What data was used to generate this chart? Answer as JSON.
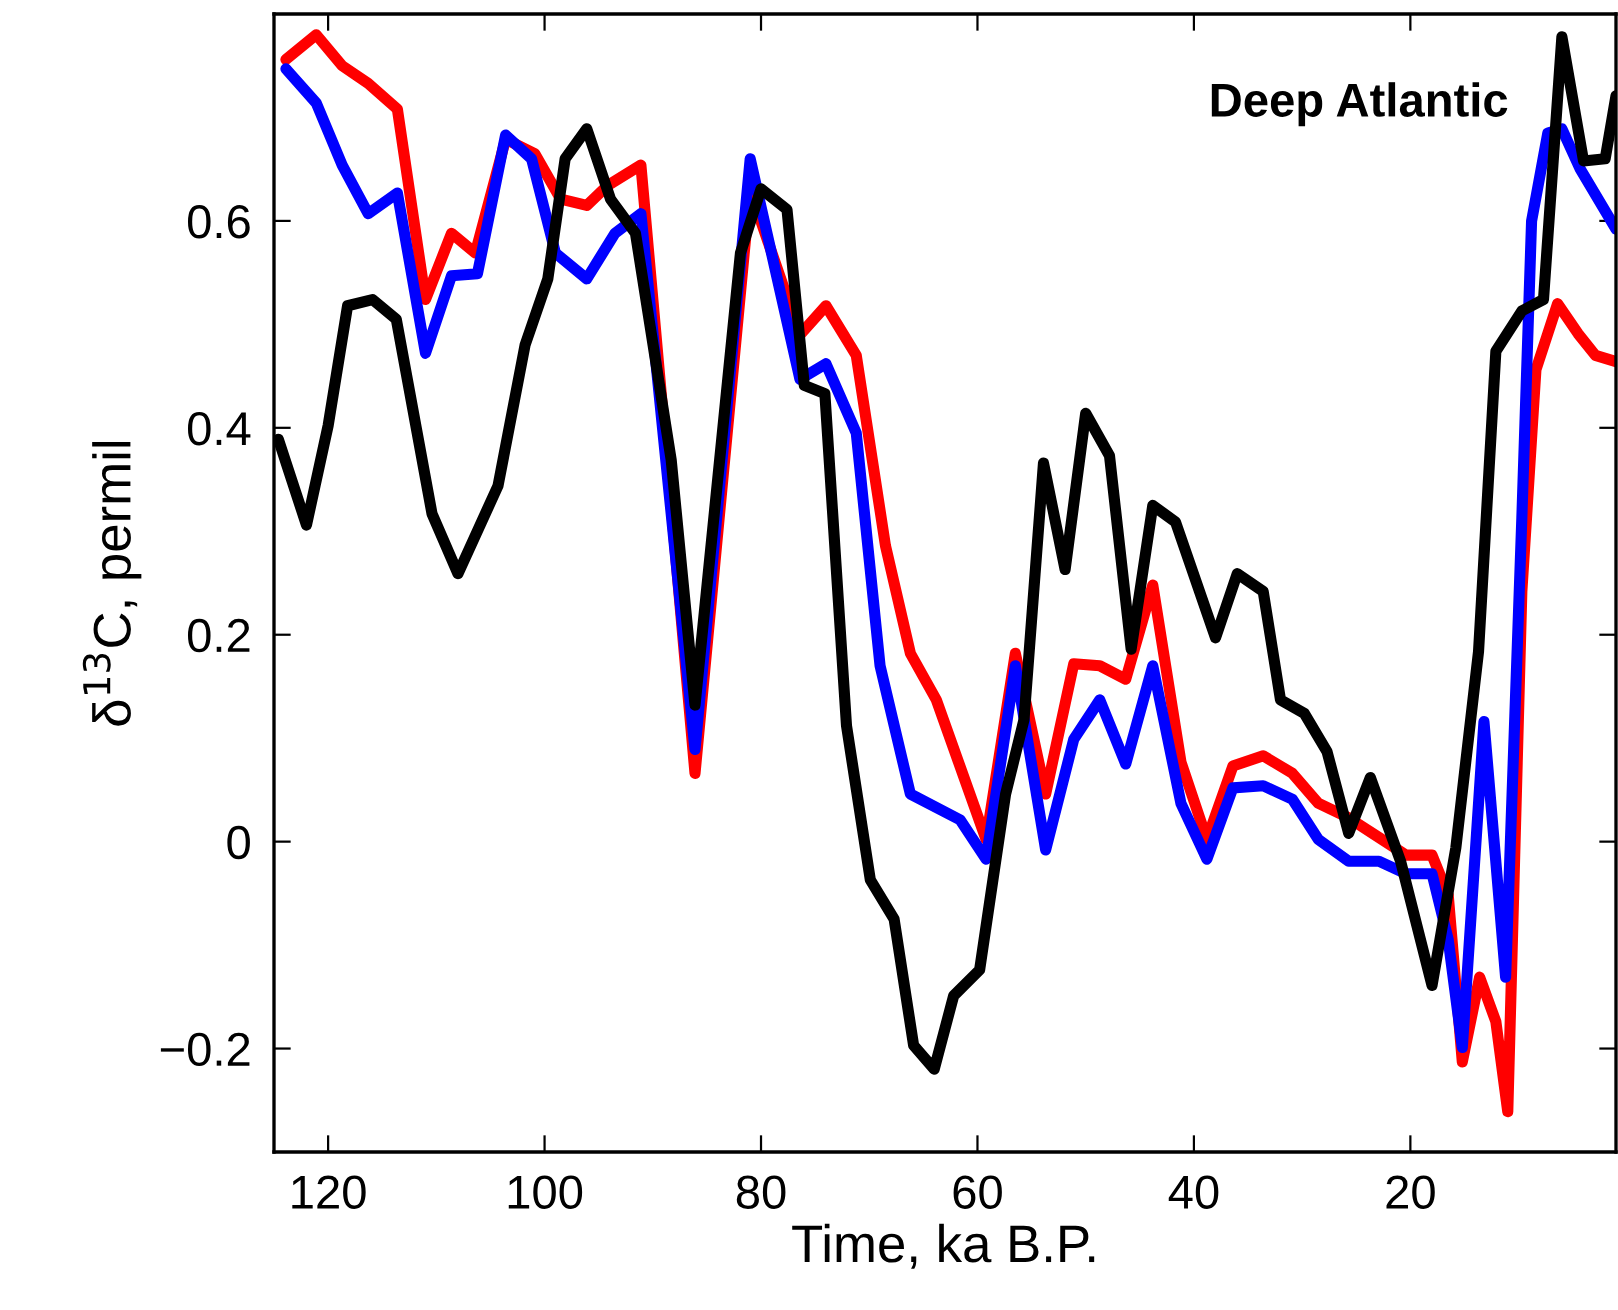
{
  "chart_data": {
    "type": "line",
    "xlabel": "Time, ka B.P.",
    "ylabel": "δ$^{13}$C, permil",
    "annotations": [
      "Deep Atlantic"
    ],
    "xlim": [
      125,
      1
    ],
    "xticks": [
      120,
      100,
      80,
      60,
      40,
      20
    ],
    "ylim": [
      -0.3,
      0.8
    ],
    "yticks": [
      {
        "value": -0.2,
        "label": "−0.2"
      },
      0,
      0.2,
      0.4,
      0.6
    ],
    "grid": false,
    "marker": "none",
    "line_style": "solid",
    "series": [
      {
        "color": "#ff0000",
        "x": [
          123.9,
          121.1,
          118.7,
          116.3,
          113.6,
          111.0,
          108.6,
          106.4,
          103.6,
          100.9,
          98.5,
          96.1,
          94.2,
          91.1,
          86.1,
          81.0,
          76.4,
          74.0,
          71.2,
          68.5,
          66.2,
          63.8,
          59.2,
          56.5,
          53.7,
          51.1,
          48.7,
          46.3,
          43.8,
          41.2,
          38.8,
          36.4,
          33.6,
          30.9,
          28.5,
          25.7,
          22.9,
          20.4,
          18.0,
          16.5,
          15.2,
          13.6,
          12.1,
          11.0,
          9.7,
          8.4,
          6.4,
          4.5,
          2.9,
          1.0
        ],
        "values": [
          0.756,
          0.78,
          0.75,
          0.733,
          0.708,
          0.524,
          0.588,
          0.569,
          0.679,
          0.665,
          0.621,
          0.615,
          0.634,
          0.654,
          0.066,
          0.63,
          0.49,
          0.518,
          0.47,
          0.286,
          0.182,
          0.137,
          0.002,
          0.182,
          0.046,
          0.172,
          0.17,
          0.157,
          0.248,
          0.077,
          0.002,
          0.073,
          0.083,
          0.066,
          0.037,
          0.023,
          0.004,
          -0.013,
          -0.013,
          -0.052,
          -0.213,
          -0.131,
          -0.174,
          -0.261,
          0.242,
          0.456,
          0.52,
          0.491,
          0.47,
          0.464
        ]
      },
      {
        "color": "#0000ff",
        "x": [
          123.9,
          121.1,
          118.7,
          116.3,
          113.6,
          111.0,
          108.6,
          106.2,
          103.6,
          101.2,
          99.0,
          96.1,
          93.5,
          91.1,
          86.1,
          81.0,
          76.4,
          74.0,
          71.2,
          69.0,
          66.2,
          61.6,
          59.2,
          56.5,
          53.7,
          51.1,
          48.7,
          46.3,
          43.8,
          41.2,
          38.8,
          36.4,
          33.6,
          30.9,
          28.5,
          25.7,
          22.9,
          20.4,
          18.0,
          16.5,
          15.2,
          13.2,
          11.2,
          9.7,
          8.8,
          7.3,
          6.0,
          4.3,
          1.0
        ],
        "values": [
          0.747,
          0.714,
          0.654,
          0.607,
          0.627,
          0.472,
          0.547,
          0.549,
          0.683,
          0.66,
          0.569,
          0.544,
          0.588,
          0.607,
          0.089,
          0.66,
          0.447,
          0.462,
          0.395,
          0.17,
          0.046,
          0.021,
          -0.017,
          0.17,
          -0.008,
          0.099,
          0.137,
          0.075,
          0.17,
          0.037,
          -0.017,
          0.052,
          0.054,
          0.041,
          0.002,
          -0.019,
          -0.019,
          -0.031,
          -0.031,
          -0.095,
          -0.199,
          0.116,
          -0.131,
          0.313,
          0.6,
          0.685,
          0.689,
          0.65,
          0.592
        ]
      },
      {
        "color": "#000000",
        "x": [
          124.6,
          122.0,
          120.0,
          118.2,
          115.9,
          113.7,
          110.4,
          108.0,
          104.3,
          101.8,
          99.7,
          98.1,
          96.1,
          93.9,
          91.6,
          88.3,
          86.1,
          81.9,
          80.0,
          77.6,
          76.0,
          74.1,
          72.1,
          69.9,
          67.7,
          65.9,
          64.0,
          62.2,
          59.8,
          57.4,
          55.7,
          53.9,
          51.9,
          50.0,
          47.8,
          45.8,
          43.8,
          41.7,
          38.0,
          36.0,
          33.6,
          32.0,
          29.8,
          27.7,
          25.7,
          23.7,
          20.9,
          18.0,
          15.8,
          13.7,
          12.1,
          9.7,
          7.7,
          6.0,
          4.0,
          2.0,
          1.0
        ],
        "values": [
          0.389,
          0.306,
          0.402,
          0.518,
          0.524,
          0.505,
          0.317,
          0.259,
          0.344,
          0.48,
          0.544,
          0.66,
          0.689,
          0.621,
          0.588,
          0.369,
          0.132,
          0.569,
          0.631,
          0.611,
          0.441,
          0.433,
          0.112,
          -0.037,
          -0.075,
          -0.197,
          -0.22,
          -0.149,
          -0.124,
          0.046,
          0.118,
          0.366,
          0.263,
          0.414,
          0.373,
          0.186,
          0.325,
          0.309,
          0.197,
          0.259,
          0.242,
          0.137,
          0.124,
          0.087,
          0.008,
          0.062,
          -0.019,
          -0.139,
          -0.006,
          0.184,
          0.474,
          0.513,
          0.524,
          0.778,
          0.658,
          0.66,
          0.721
        ]
      }
    ]
  }
}
